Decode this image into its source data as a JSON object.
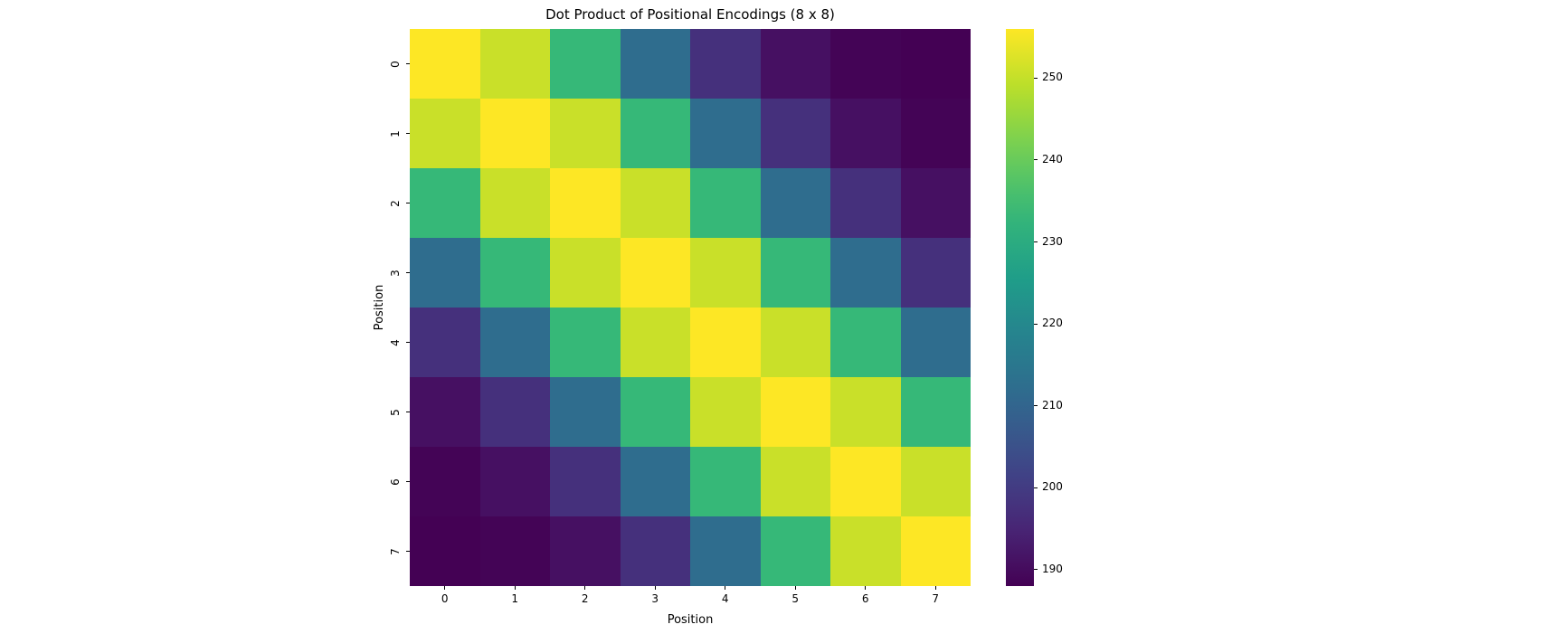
{
  "chart_data": {
    "type": "heatmap",
    "title": "Dot Product of Positional Encodings (8 x 8)",
    "xlabel": "Position",
    "ylabel": "Position",
    "x_tick_labels": [
      "0",
      "1",
      "2",
      "3",
      "4",
      "5",
      "6",
      "7"
    ],
    "y_tick_labels": [
      "0",
      "1",
      "2",
      "3",
      "4",
      "5",
      "6",
      "7"
    ],
    "colormap": "viridis",
    "vmin": 188.0,
    "vmax": 256.0,
    "colorbar_ticks": [
      190,
      200,
      210,
      220,
      230,
      240,
      250
    ],
    "matrix": [
      [
        256.0,
        250.5,
        233.5,
        212.0,
        197.5,
        191.0,
        188.5,
        188.0
      ],
      [
        250.5,
        256.0,
        250.5,
        233.5,
        212.0,
        197.5,
        191.0,
        188.5
      ],
      [
        233.5,
        250.5,
        256.0,
        250.5,
        233.5,
        212.0,
        197.5,
        191.0
      ],
      [
        212.0,
        233.5,
        250.5,
        256.0,
        250.5,
        233.5,
        212.0,
        197.5
      ],
      [
        197.5,
        212.0,
        233.5,
        250.5,
        256.0,
        250.5,
        233.5,
        212.0
      ],
      [
        191.0,
        197.5,
        212.0,
        233.5,
        250.5,
        256.0,
        250.5,
        233.5
      ],
      [
        188.5,
        191.0,
        197.5,
        212.0,
        233.5,
        250.5,
        256.0,
        250.5
      ],
      [
        188.0,
        188.5,
        191.0,
        197.5,
        212.0,
        233.5,
        250.5,
        256.0
      ]
    ],
    "legend_position": "right (colorbar)",
    "grid": false
  },
  "colors": {
    "viridis_stops": [
      "#440154",
      "#482878",
      "#3e4989",
      "#31688e",
      "#26828e",
      "#1f9e89",
      "#35b779",
      "#6ece58",
      "#b5de2b",
      "#fde725"
    ]
  }
}
